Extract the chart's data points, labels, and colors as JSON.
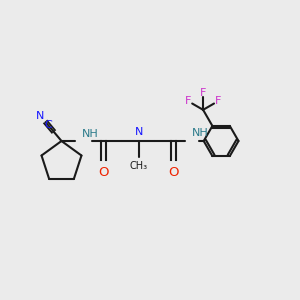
{
  "bg_color": "#ebebeb",
  "bond_color": "#1a1a1a",
  "N_color": "#1515ff",
  "O_color": "#ee2200",
  "F_color": "#cc33cc",
  "NH_color": "#2a7a8a",
  "figsize": [
    3.0,
    3.0
  ],
  "dpi": 100,
  "xlim": [
    0,
    10
  ],
  "ylim": [
    0,
    10
  ],
  "font_size": 8.0
}
